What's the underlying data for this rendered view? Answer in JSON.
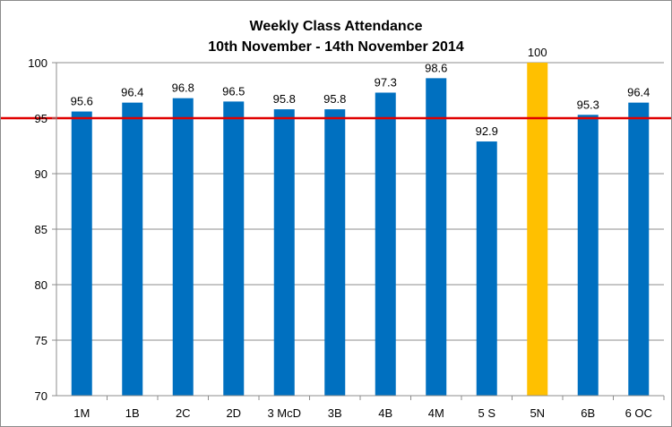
{
  "chart_data": {
    "type": "bar",
    "title": "Weekly Class Attendance",
    "subtitle": "10th November - 14th November 2014",
    "xlabel": "",
    "ylabel": "",
    "categories": [
      "1M",
      "1B",
      "2C",
      "2D",
      "3 McD",
      "3B",
      "4B",
      "4M",
      "5 S",
      "5N",
      "6B",
      "6 OC"
    ],
    "values": [
      95.6,
      96.4,
      96.8,
      96.5,
      95.8,
      95.8,
      97.3,
      98.6,
      92.9,
      100,
      95.3,
      96.4
    ],
    "data_labels": [
      "95.6",
      "96.4",
      "96.8",
      "96.5",
      "95.8",
      "95.8",
      "97.3",
      "98.6",
      "92.9",
      "100",
      "95.3",
      "96.4"
    ],
    "ylim": [
      70,
      100
    ],
    "yticks": [
      70,
      75,
      80,
      85,
      90,
      95,
      100
    ],
    "grid": true,
    "legend": "none",
    "reference_line": {
      "value": 95,
      "color": "#e00000"
    },
    "colors": {
      "bar": "#0070c0",
      "highlight_bar": "#ffc000",
      "highlight_category": "5N",
      "gridline": "#8c8c8c"
    }
  }
}
